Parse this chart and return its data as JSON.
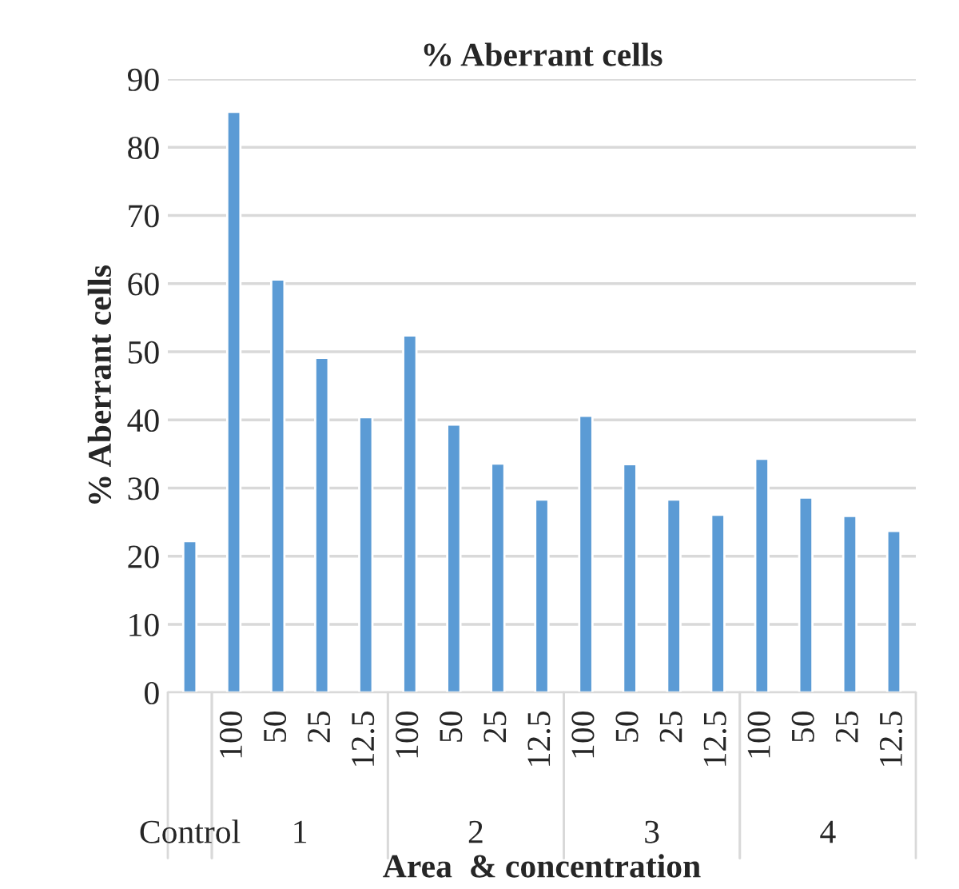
{
  "chart_data": {
    "type": "bar",
    "title": "% Aberrant cells",
    "xlabel": "Area  & concentration",
    "ylabel": "% Aberrant cells",
    "categories": [
      null,
      "100",
      "50",
      "25",
      "12.5",
      "100",
      "50",
      "25",
      "12.5",
      "100",
      "50",
      "25",
      "12.5",
      "100",
      "50",
      "25",
      "12.5"
    ],
    "values": [
      22.2,
      85.2,
      60.6,
      49.1,
      40.4,
      52.4,
      39.3,
      33.6,
      28.3,
      40.6,
      33.5,
      28.3,
      26.1,
      34.3,
      28.6,
      25.9,
      23.7
    ],
    "color": "#5b9bd5",
    "annotations": [
      "Control",
      "1",
      "2",
      "3",
      "4"
    ],
    "ylim": [
      0,
      90
    ],
    "yticks": [
      0,
      10,
      20,
      30,
      40,
      50,
      60,
      70,
      80,
      90
    ],
    "grid": "y"
  }
}
